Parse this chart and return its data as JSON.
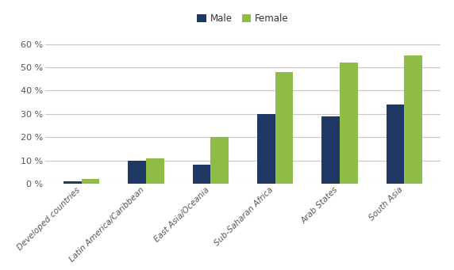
{
  "categories": [
    "Developed countries",
    "Latin America/Caribbean",
    "East Asia/Oceania",
    "Sub-Saharan Africa",
    "Arab States",
    "South Asia"
  ],
  "male_values": [
    1,
    10,
    8,
    30,
    29,
    34
  ],
  "female_values": [
    2,
    11,
    20,
    48,
    52,
    55
  ],
  "male_color": "#1F3864",
  "female_color": "#8FBC45",
  "legend_labels": [
    "Male",
    "Female"
  ],
  "ylim": [
    0,
    65
  ],
  "yticks": [
    0,
    10,
    20,
    30,
    40,
    50,
    60
  ],
  "bar_width": 0.28,
  "background_color": "#ffffff",
  "grid_color": "#c8c8c8",
  "title": "",
  "ylabel": ""
}
